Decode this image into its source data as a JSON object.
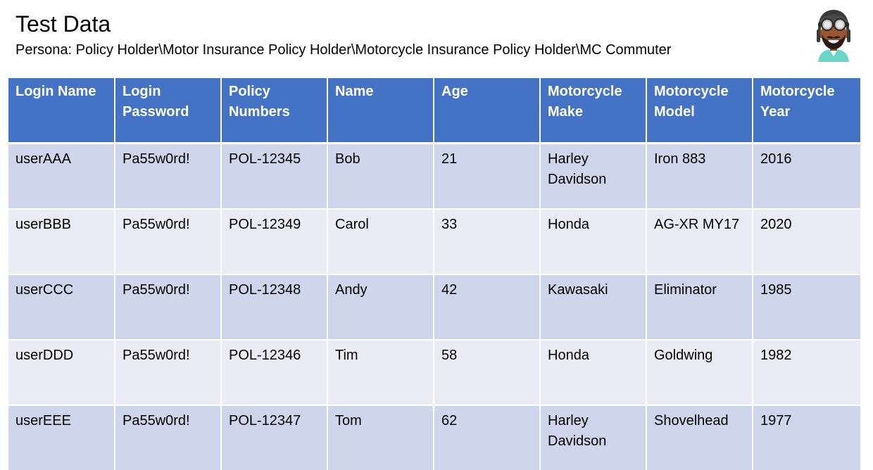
{
  "slide": {
    "title": "Test Data",
    "subtitle": "Persona: Policy Holder\\Motor Insurance Policy Holder\\Motorcycle Insurance Policy Holder\\MC Commuter"
  },
  "avatar": {
    "icon": "motorcycle-rider-avatar-icon"
  },
  "colors": {
    "header_bg": "#4472c4",
    "row_odd": "#cfd5ea",
    "row_even": "#e9ebf5",
    "header_text": "#ffffff"
  },
  "table": {
    "columns": [
      "Login Name",
      "Login Password",
      "Policy Numbers",
      "Name",
      "Age",
      "Motorcycle Make",
      "Motorcycle Model",
      "Motorcycle Year"
    ],
    "rows": [
      [
        "userAAA",
        "Pa55w0rd!",
        "POL-12345",
        "Bob",
        "21",
        "Harley Davidson",
        "Iron 883",
        "2016"
      ],
      [
        "userBBB",
        "Pa55w0rd!",
        "POL-12349",
        "Carol",
        "33",
        "Honda",
        "AG-XR MY17",
        "2020"
      ],
      [
        "userCCC",
        "Pa55w0rd!",
        "POL-12348",
        "Andy",
        "42",
        "Kawasaki",
        "Eliminator",
        "1985"
      ],
      [
        "userDDD",
        "Pa55w0rd!",
        "POL-12346",
        "Tim",
        "58",
        "Honda",
        "Goldwing",
        "1982"
      ],
      [
        "userEEE",
        "Pa55w0rd!",
        "POL-12347",
        "Tom",
        "62",
        "Harley Davidson",
        "Shovelhead",
        "1977"
      ]
    ]
  }
}
